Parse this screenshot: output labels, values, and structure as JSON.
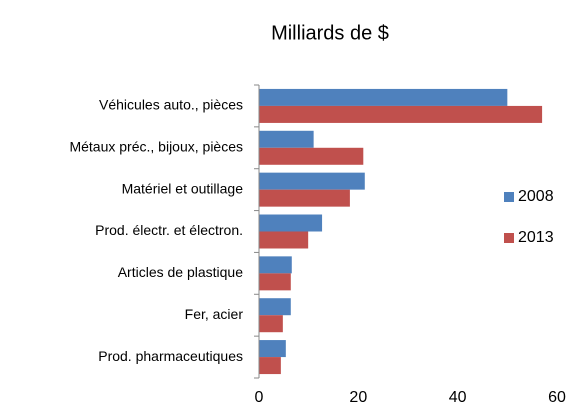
{
  "chart_data": {
    "type": "hbar",
    "title": "Milliards de $",
    "categories": [
      "Véhicules auto., pièces",
      "Métaux préc., bijoux, pièces",
      "Matériel et outillage",
      "Prod. électr. et électron.",
      "Articles de plastique",
      "Fer, acier",
      "Prod. pharmaceutiques"
    ],
    "series": [
      {
        "name": "2008",
        "color": "#4f81bd",
        "values": [
          50,
          11,
          21.3,
          12.7,
          6.6,
          6.4,
          5.4
        ]
      },
      {
        "name": "2013",
        "color": "#c0504d",
        "values": [
          57,
          21,
          18.3,
          9.9,
          6.4,
          4.8,
          4.4
        ]
      }
    ],
    "xlim": [
      0,
      60
    ],
    "xticks": [
      0,
      20,
      40,
      60
    ],
    "grid": false,
    "legend": "right"
  }
}
